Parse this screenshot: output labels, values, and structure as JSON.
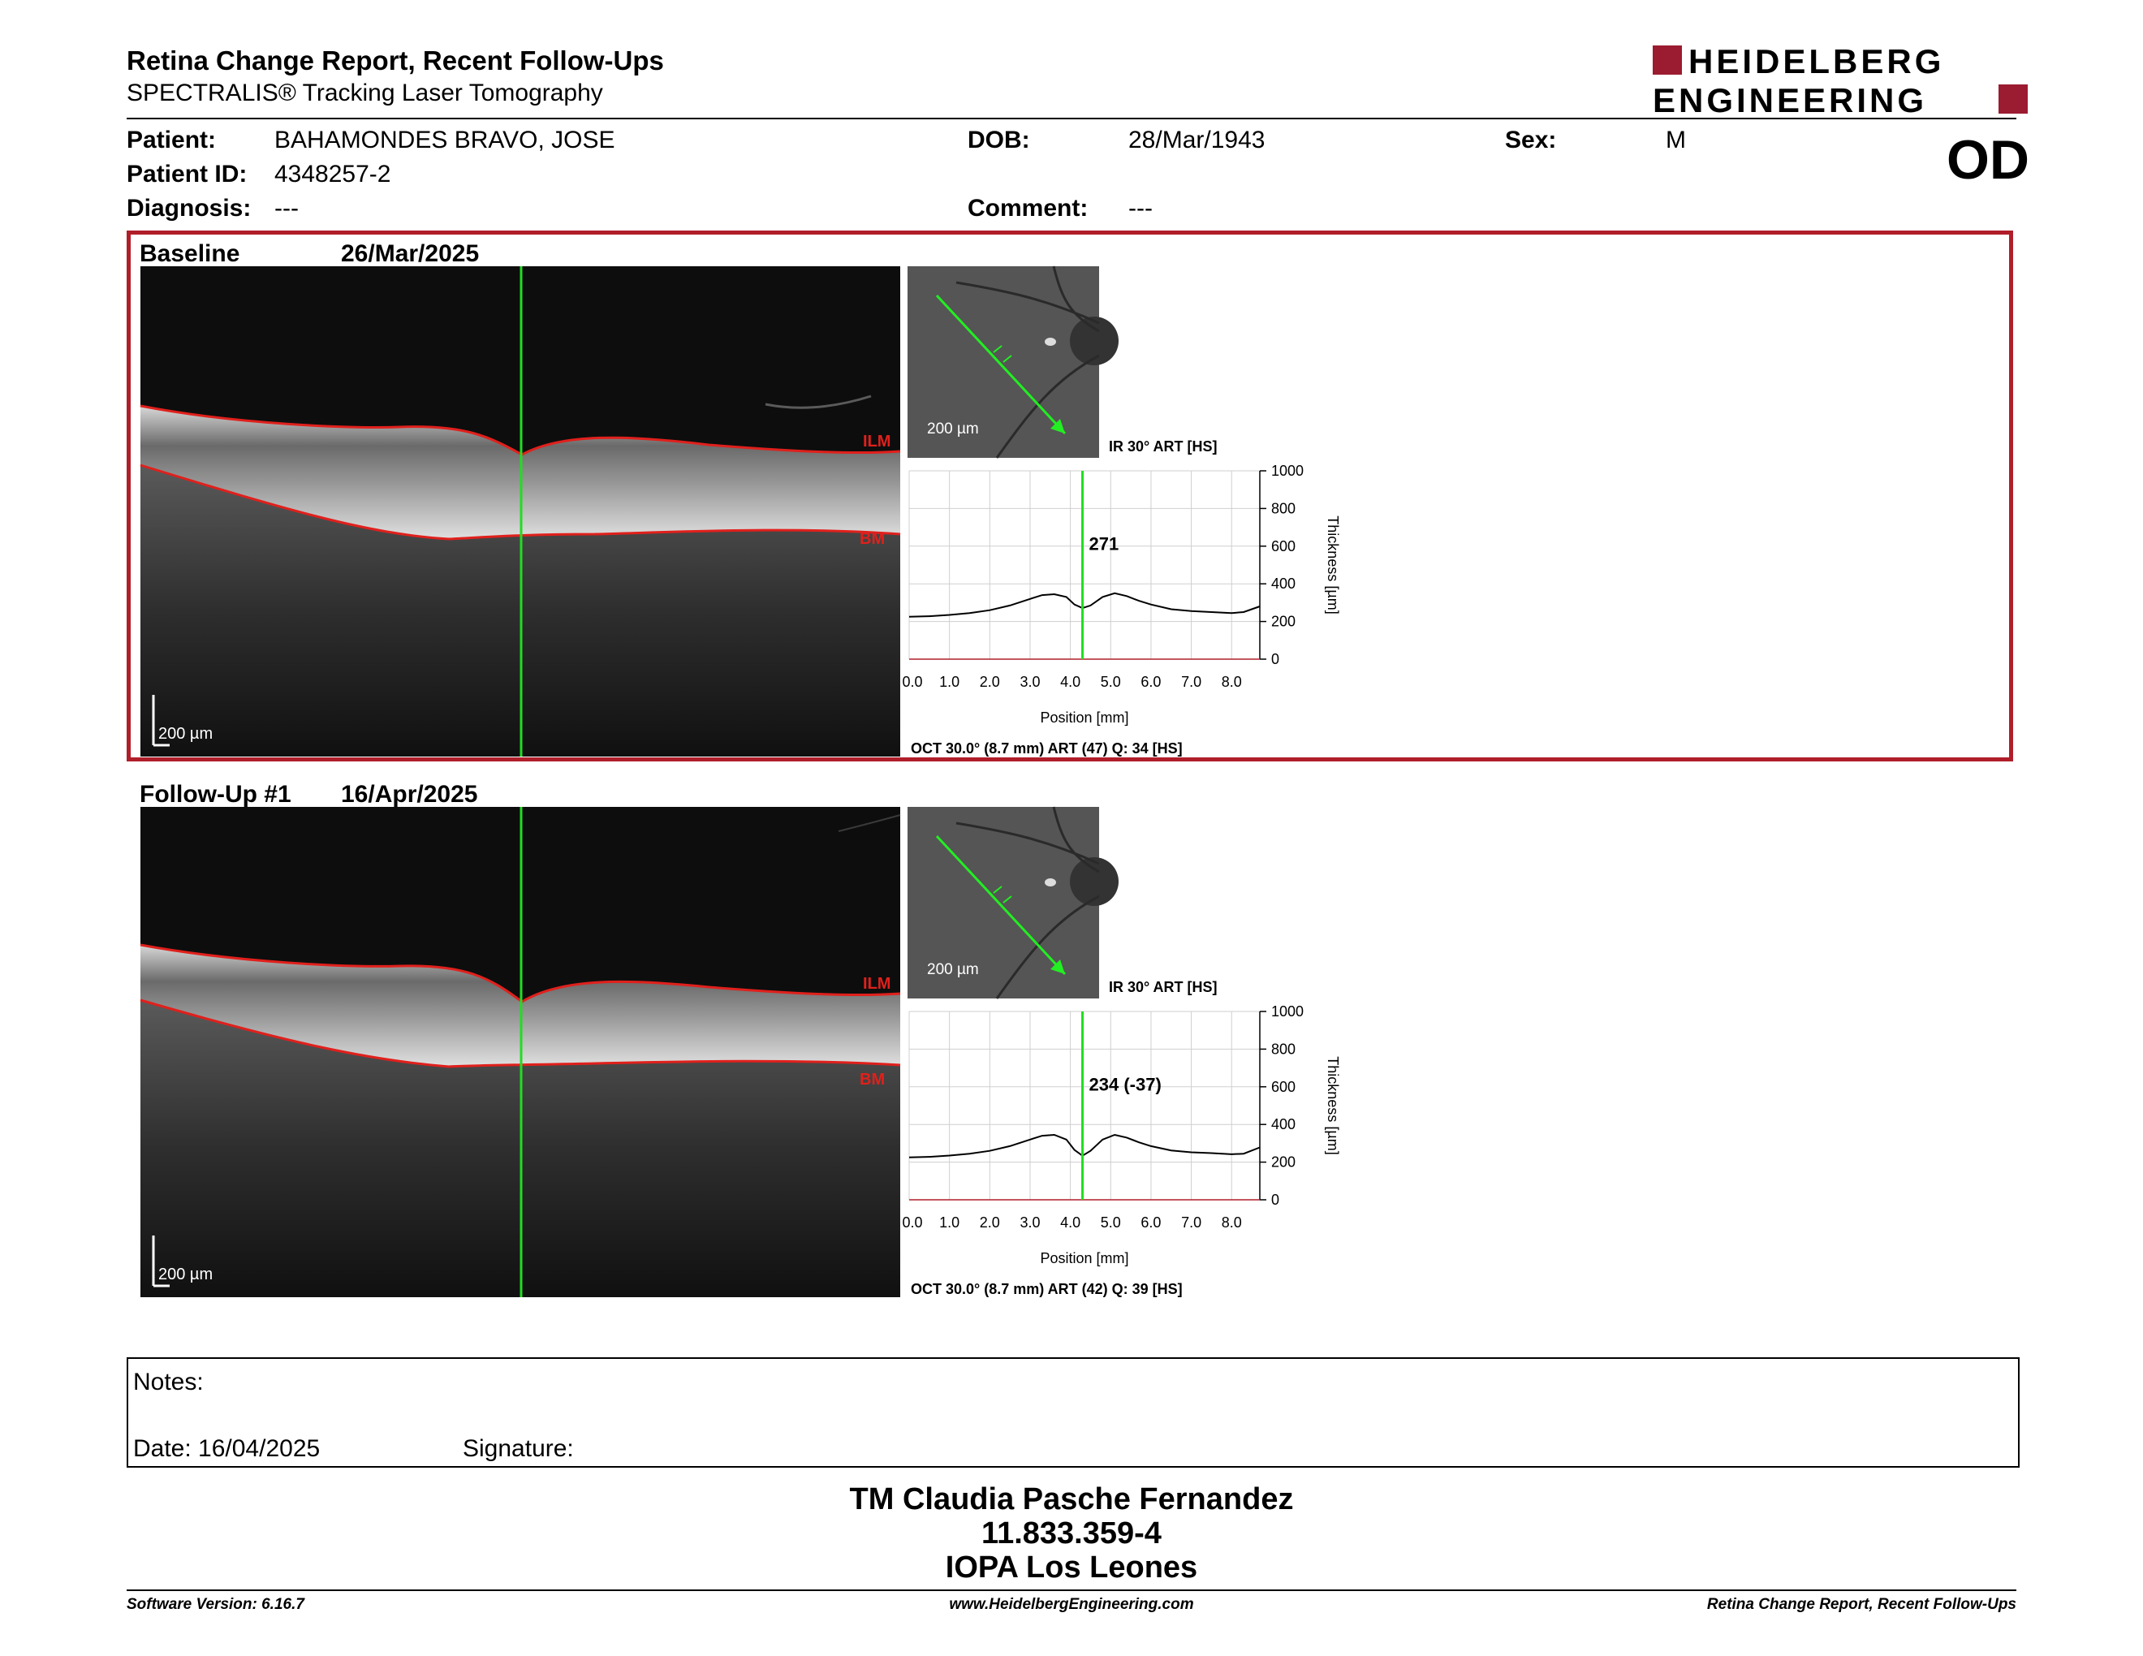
{
  "header": {
    "title": "Retina Change Report, Recent Follow-Ups",
    "subtitle": "SPECTRALIS® Tracking Laser Tomography",
    "brand_line1": "HEIDELBERG",
    "brand_line2": "ENGINEERING",
    "brand_color": "#9b1b30"
  },
  "patient": {
    "patient_label": "Patient:",
    "patient_value": "BAHAMONDES BRAVO, JOSE",
    "id_label": "Patient ID:",
    "id_value": "4348257-2",
    "diagnosis_label": "Diagnosis:",
    "diagnosis_value": "---",
    "dob_label": "DOB:",
    "dob_value": "28/Mar/1943",
    "comment_label": "Comment:",
    "comment_value": "---",
    "sex_label": "Sex:",
    "sex_value": "M",
    "eye": "OD"
  },
  "baseline": {
    "title": "Baseline",
    "date": "26/Mar/2025",
    "fundus_scale": "200 µm",
    "fundus_caption": "IR 30° ART [HS]",
    "oct_scale": "200 µm",
    "ilm": "ILM",
    "bm": "BM",
    "thickness_label": "271",
    "oct_caption": "OCT 30.0° (8.7 mm) ART (47) Q: 34 [HS]"
  },
  "followup": {
    "title": "Follow-Up #1",
    "date": "16/Apr/2025",
    "fundus_scale": "200 µm",
    "fundus_caption": "IR 30° ART [HS]",
    "oct_scale": "200 µm",
    "ilm": "ILM",
    "bm": "BM",
    "thickness_label": "234 (-37)",
    "oct_caption": "OCT 30.0° (8.7 mm) ART (42) Q: 39 [HS]"
  },
  "chart_data": [
    {
      "type": "line",
      "xlabel": "Position [mm]",
      "ylabel": "Thickness [µm]",
      "xlim": [
        0,
        8.7
      ],
      "ylim": [
        0,
        1000
      ],
      "x_ticks": [
        "0.0",
        "1.0",
        "2.0",
        "3.0",
        "4.0",
        "5.0",
        "6.0",
        "7.0",
        "8.0"
      ],
      "y_ticks": [
        "0",
        "200",
        "400",
        "600",
        "800",
        "1000"
      ],
      "marker_position": 4.3,
      "marker_value": "271",
      "series": [
        {
          "x": [
            0,
            0.5,
            1,
            1.5,
            2,
            2.5,
            3,
            3.3,
            3.6,
            3.9,
            4.1,
            4.3,
            4.5,
            4.8,
            5.1,
            5.4,
            5.7,
            6,
            6.5,
            7,
            7.5,
            8,
            8.3,
            8.7
          ],
          "values": [
            225,
            228,
            235,
            245,
            260,
            285,
            320,
            340,
            345,
            330,
            290,
            271,
            285,
            330,
            350,
            335,
            310,
            290,
            265,
            255,
            250,
            245,
            250,
            280
          ]
        }
      ]
    },
    {
      "type": "line",
      "xlabel": "Position [mm]",
      "ylabel": "Thickness [µm]",
      "xlim": [
        0,
        8.7
      ],
      "ylim": [
        0,
        1000
      ],
      "x_ticks": [
        "0.0",
        "1.0",
        "2.0",
        "3.0",
        "4.0",
        "5.0",
        "6.0",
        "7.0",
        "8.0"
      ],
      "y_ticks": [
        "0",
        "200",
        "400",
        "600",
        "800",
        "1000"
      ],
      "marker_position": 4.3,
      "marker_value": "234 (-37)",
      "series": [
        {
          "x": [
            0,
            0.5,
            1,
            1.5,
            2,
            2.5,
            3,
            3.3,
            3.6,
            3.9,
            4.1,
            4.3,
            4.5,
            4.8,
            5.1,
            5.4,
            5.7,
            6,
            6.5,
            7,
            7.5,
            8,
            8.3,
            8.7
          ],
          "values": [
            225,
            228,
            235,
            245,
            260,
            285,
            320,
            340,
            345,
            320,
            265,
            234,
            260,
            320,
            345,
            330,
            305,
            285,
            262,
            252,
            248,
            242,
            245,
            278
          ]
        }
      ]
    }
  ],
  "notes": {
    "notes_label": "Notes:",
    "date_label": "Date: 16/04/2025",
    "signature_label": "Signature:"
  },
  "footer": {
    "name": "TM Claudia Pasche Fernandez",
    "rut": "11.833.359-4",
    "clinic": "IOPA Los Leones",
    "software": "Software Version: 6.16.7",
    "website": "www.HeidelbergEngineering.com",
    "report": "Retina Change Report, Recent Follow-Ups"
  }
}
